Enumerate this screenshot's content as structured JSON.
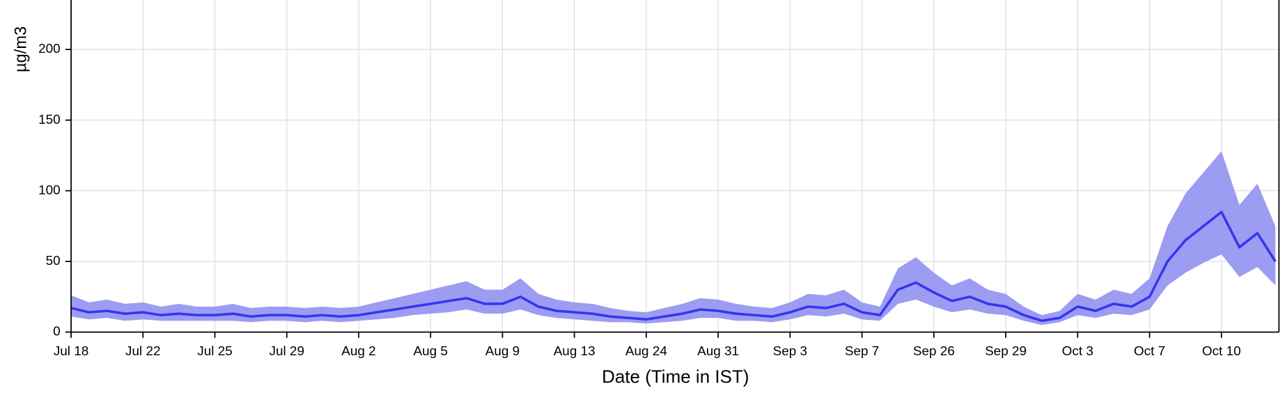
{
  "chart_data": {
    "type": "line-band",
    "ylabel": "µg/m3",
    "xlabel": "Date (Time in IST)",
    "xlim": [
      0,
      16.8
    ],
    "ylim": [
      0,
      235
    ],
    "yticks": [
      0,
      50,
      100,
      150,
      200
    ],
    "xticks": [
      {
        "value": 0,
        "label": "Jul 18"
      },
      {
        "value": 1,
        "label": "Jul 22"
      },
      {
        "value": 2,
        "label": "Jul 25"
      },
      {
        "value": 3,
        "label": "Jul 29"
      },
      {
        "value": 4,
        "label": "Aug 2"
      },
      {
        "value": 5,
        "label": "Aug 5"
      },
      {
        "value": 6,
        "label": "Aug 9"
      },
      {
        "value": 7,
        "label": "Aug 13"
      },
      {
        "value": 8,
        "label": "Aug 24"
      },
      {
        "value": 9,
        "label": "Aug 31"
      },
      {
        "value": 10,
        "label": "Sep 3"
      },
      {
        "value": 11,
        "label": "Sep 7"
      },
      {
        "value": 12,
        "label": "Sep 26"
      },
      {
        "value": 13,
        "label": "Sep 29"
      },
      {
        "value": 14,
        "label": "Oct 3"
      },
      {
        "value": 15,
        "label": "Oct 7"
      },
      {
        "value": 16,
        "label": "Oct 10"
      }
    ],
    "grid": true,
    "x": [
      0,
      0.25,
      0.5,
      0.75,
      1,
      1.25,
      1.5,
      1.75,
      2,
      2.25,
      2.5,
      2.75,
      3,
      3.25,
      3.5,
      3.75,
      4,
      4.25,
      4.5,
      4.75,
      5,
      5.25,
      5.5,
      5.75,
      6,
      6.25,
      6.5,
      6.75,
      7,
      7.25,
      7.5,
      7.75,
      8,
      8.25,
      8.5,
      8.75,
      9,
      9.25,
      9.5,
      9.75,
      10,
      10.25,
      10.5,
      10.75,
      11,
      11.25,
      11.5,
      11.75,
      12,
      12.25,
      12.5,
      12.75,
      13,
      13.25,
      13.5,
      13.75,
      14,
      14.25,
      14.5,
      14.75,
      15,
      15.25,
      15.5,
      15.75,
      16,
      16.25,
      16.5,
      16.75
    ],
    "series": [
      {
        "color": "#3535ef",
        "band_color": "#9c9cf3",
        "values": [
          17,
          14,
          15,
          13,
          14,
          12,
          13,
          12,
          12,
          13,
          11,
          12,
          12,
          11,
          12,
          11,
          12,
          14,
          16,
          18,
          20,
          22,
          24,
          20,
          20,
          25,
          18,
          15,
          14,
          13,
          11,
          10,
          9,
          11,
          13,
          16,
          15,
          13,
          12,
          11,
          14,
          18,
          17,
          20,
          14,
          12,
          30,
          35,
          28,
          22,
          25,
          20,
          18,
          12,
          8,
          10,
          18,
          15,
          20,
          18,
          25,
          50,
          65,
          75,
          85,
          60,
          70,
          50
        ],
        "lower": [
          11,
          9,
          10,
          8,
          9,
          8,
          8,
          8,
          8,
          8,
          7,
          8,
          8,
          7,
          8,
          7,
          8,
          9,
          10,
          12,
          13,
          14,
          16,
          13,
          13,
          16,
          12,
          10,
          9,
          8,
          7,
          7,
          6,
          7,
          8,
          10,
          10,
          8,
          8,
          7,
          9,
          12,
          11,
          13,
          9,
          8,
          20,
          23,
          18,
          14,
          16,
          13,
          12,
          8,
          5,
          7,
          12,
          10,
          13,
          12,
          16,
          33,
          42,
          49,
          55,
          39,
          46,
          33
        ],
        "upper": [
          26,
          21,
          23,
          20,
          21,
          18,
          20,
          18,
          18,
          20,
          17,
          18,
          18,
          17,
          18,
          17,
          18,
          21,
          24,
          27,
          30,
          33,
          36,
          30,
          30,
          38,
          27,
          23,
          21,
          20,
          17,
          15,
          14,
          17,
          20,
          24,
          23,
          20,
          18,
          17,
          21,
          27,
          26,
          30,
          21,
          18,
          45,
          53,
          42,
          33,
          38,
          30,
          27,
          18,
          12,
          15,
          27,
          23,
          30,
          27,
          38,
          75,
          98,
          113,
          128,
          90,
          105,
          75
        ]
      }
    ]
  }
}
